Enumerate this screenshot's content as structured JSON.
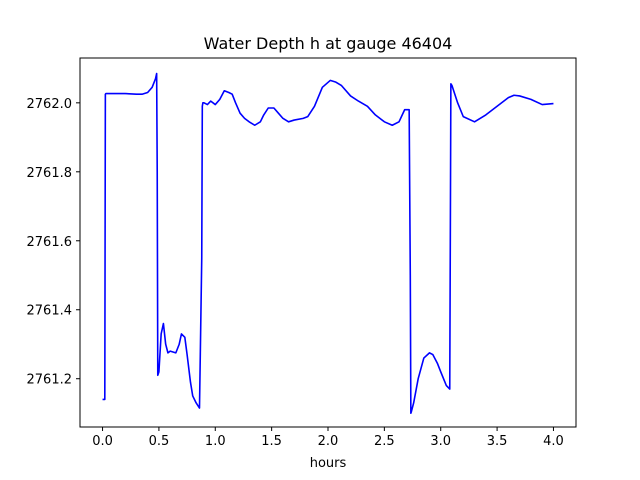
{
  "chart_data": {
    "type": "line",
    "title": "Water Depth h at gauge 46404",
    "xlabel": "hours",
    "ylabel": "",
    "xlim": [
      -0.2,
      4.2
    ],
    "ylim": [
      2761.06,
      2762.13
    ],
    "xticks": [
      0.0,
      0.5,
      1.0,
      1.5,
      2.0,
      2.5,
      3.0,
      3.5,
      4.0
    ],
    "xtick_labels": [
      "0.0",
      "0.5",
      "1.0",
      "1.5",
      "2.0",
      "2.5",
      "3.0",
      "3.5",
      "4.0"
    ],
    "yticks": [
      2761.2,
      2761.4,
      2761.6,
      2761.8,
      2762.0
    ],
    "ytick_labels": [
      "2761.2",
      "2761.4",
      "2761.6",
      "2761.8",
      "2762.0"
    ],
    "grid": false,
    "series": [
      {
        "color": "#0000ff",
        "x": [
          0.0,
          0.02,
          0.025,
          0.03,
          0.1,
          0.2,
          0.3,
          0.35,
          0.4,
          0.44,
          0.47,
          0.48,
          0.485,
          0.49,
          0.5,
          0.52,
          0.54,
          0.56,
          0.58,
          0.6,
          0.65,
          0.68,
          0.7,
          0.73,
          0.75,
          0.78,
          0.8,
          0.83,
          0.86,
          0.88,
          0.885,
          0.89,
          0.9,
          0.93,
          0.96,
          1.0,
          1.04,
          1.08,
          1.12,
          1.15,
          1.18,
          1.22,
          1.26,
          1.3,
          1.35,
          1.4,
          1.43,
          1.47,
          1.52,
          1.56,
          1.6,
          1.65,
          1.7,
          1.78,
          1.82,
          1.88,
          1.95,
          2.02,
          2.07,
          2.12,
          2.2,
          2.27,
          2.35,
          2.42,
          2.5,
          2.57,
          2.63,
          2.68,
          2.72,
          2.73,
          2.735,
          2.74,
          2.76,
          2.8,
          2.85,
          2.9,
          2.93,
          2.97,
          3.0,
          3.05,
          3.08,
          3.085,
          3.09,
          3.1,
          3.15,
          3.2,
          3.3,
          3.4,
          3.5,
          3.6,
          3.65,
          3.7,
          3.8,
          3.9,
          4.0
        ],
        "values": [
          2761.14,
          2761.14,
          2762.025,
          2762.027,
          2762.027,
          2762.027,
          2762.025,
          2762.025,
          2762.03,
          2762.045,
          2762.07,
          2762.085,
          2761.8,
          2761.21,
          2761.22,
          2761.33,
          2761.36,
          2761.3,
          2761.275,
          2761.28,
          2761.275,
          2761.3,
          2761.33,
          2761.32,
          2761.27,
          2761.19,
          2761.15,
          2761.13,
          2761.115,
          2761.55,
          2761.99,
          2762.0,
          2762.0,
          2761.995,
          2762.005,
          2761.995,
          2762.01,
          2762.035,
          2762.03,
          2762.025,
          2762.0,
          2761.97,
          2761.955,
          2761.945,
          2761.935,
          2761.945,
          2761.965,
          2761.985,
          2761.985,
          2761.97,
          2761.955,
          2761.945,
          2761.95,
          2761.955,
          2761.96,
          2761.99,
          2762.045,
          2762.065,
          2762.06,
          2762.05,
          2762.02,
          2762.005,
          2761.99,
          2761.965,
          2761.945,
          2761.935,
          2761.945,
          2761.98,
          2761.98,
          2761.5,
          2761.1,
          2761.105,
          2761.13,
          2761.2,
          2761.26,
          2761.275,
          2761.27,
          2761.245,
          2761.22,
          2761.18,
          2761.17,
          2761.6,
          2762.055,
          2762.05,
          2762.0,
          2761.96,
          2761.945,
          2761.965,
          2761.99,
          2762.015,
          2762.022,
          2762.02,
          2762.01,
          2761.995,
          2761.998
        ]
      }
    ]
  }
}
